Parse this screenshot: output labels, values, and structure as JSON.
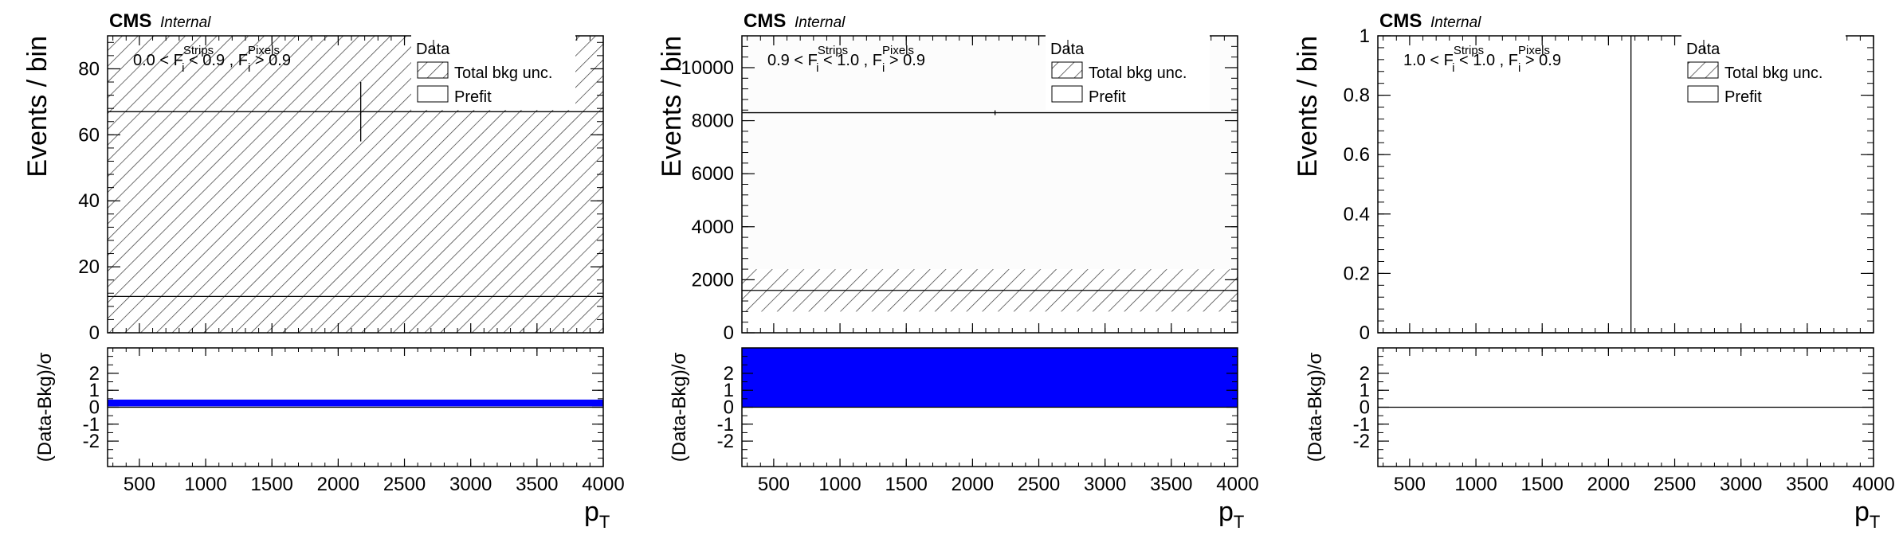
{
  "chart_data": [
    {
      "type": "bar",
      "experiment_label": "CMS",
      "experiment_sublabel": "Internal",
      "region": {
        "text": "0.0 < F",
        "sup1": "Strips",
        "sub1": "i",
        "mid": " < 0.9 , F",
        "sup2": "Pixels",
        "sub2": "i",
        "end": " > 0.9"
      },
      "xlabel": "p",
      "xlabel_sub": "T",
      "ylabel": "Events / bin",
      "ratio_ylabel": "(Data-Bkg)/σ",
      "xlim": [
        260,
        4000
      ],
      "xticks": [
        500,
        1000,
        1500,
        2000,
        2500,
        3000,
        3500,
        4000
      ],
      "ylim": [
        0,
        90
      ],
      "yticks": [
        0,
        20,
        40,
        60,
        80
      ],
      "ratio_ylim": [
        -3.5,
        3.5
      ],
      "ratio_yticks": [
        -2,
        -1,
        0,
        1,
        2
      ],
      "legend": [
        "Data",
        "Total bkg unc.",
        "Prefit"
      ],
      "legend_position": "top-right",
      "series": [
        {
          "name": "Prefit",
          "x": [
            260,
            4000
          ],
          "values": [
            11,
            11
          ]
        },
        {
          "name": "Total bkg unc.",
          "x": [
            260,
            4000
          ],
          "low": [
            0,
            0
          ],
          "high": [
            90,
            90
          ]
        },
        {
          "name": "Data",
          "x": [
            2170
          ],
          "values": [
            67
          ],
          "yerr": [
            9
          ]
        }
      ],
      "data_level_line": 67,
      "ratio": {
        "values": [
          0.25
        ],
        "half_height": 0.2
      }
    },
    {
      "type": "bar",
      "experiment_label": "CMS",
      "experiment_sublabel": "Internal",
      "region": {
        "text": "0.9 < F",
        "sup1": "Strips",
        "sub1": "i",
        "mid": " < 1.0 , F",
        "sup2": "Pixels",
        "sub2": "i",
        "end": " > 0.9"
      },
      "xlabel": "p",
      "xlabel_sub": "T",
      "ylabel": "Events / bin",
      "ratio_ylabel": "(Data-Bkg)/σ",
      "xlim": [
        260,
        4000
      ],
      "xticks": [
        500,
        1000,
        1500,
        2000,
        2500,
        3000,
        3500,
        4000
      ],
      "ylim": [
        0,
        11200
      ],
      "yticks": [
        0,
        2000,
        4000,
        6000,
        8000,
        10000
      ],
      "ratio_ylim": [
        -3.5,
        3.5
      ],
      "ratio_yticks": [
        -2,
        -1,
        0,
        1,
        2
      ],
      "legend": [
        "Data",
        "Total bkg unc.",
        "Prefit"
      ],
      "legend_position": "top-right",
      "series": [
        {
          "name": "Prefit",
          "x": [
            260,
            4000
          ],
          "values": [
            1600,
            1600
          ]
        },
        {
          "name": "Total bkg unc.",
          "x": [
            260,
            4000
          ],
          "low": [
            800,
            800
          ],
          "high": [
            2400,
            2400
          ]
        },
        {
          "name": "Data",
          "x": [
            2170
          ],
          "values": [
            8300
          ],
          "yerr": [
            90
          ]
        }
      ],
      "data_level_line": 8300,
      "ratio": {
        "values": [
          1.75
        ],
        "half_height": 1.75
      }
    },
    {
      "type": "bar",
      "experiment_label": "CMS",
      "experiment_sublabel": "Internal",
      "region": {
        "text": "1.0 < F",
        "sup1": "Strips",
        "sub1": "i",
        "mid": " < 1.0 , F",
        "sup2": "Pixels",
        "sub2": "i",
        "end": " > 0.9"
      },
      "xlabel": "p",
      "xlabel_sub": "T",
      "ylabel": "Events / bin",
      "ratio_ylabel": "(Data-Bkg)/σ",
      "xlim": [
        260,
        4000
      ],
      "xticks": [
        500,
        1000,
        1500,
        2000,
        2500,
        3000,
        3500,
        4000
      ],
      "ylim": [
        0,
        1
      ],
      "yticks": [
        0,
        0.2,
        0.4,
        0.6,
        0.8,
        1
      ],
      "ratio_ylim": [
        -3.5,
        3.5
      ],
      "ratio_yticks": [
        -2,
        -1,
        0,
        1,
        2
      ],
      "legend": [
        "Data",
        "Total bkg unc.",
        "Prefit"
      ],
      "legend_position": "top-right",
      "series": [
        {
          "name": "Prefit",
          "x": [
            260,
            4000
          ],
          "values": [
            0,
            0
          ]
        },
        {
          "name": "Total bkg unc.",
          "x": [
            260,
            4000
          ],
          "low": [
            0,
            0
          ],
          "high": [
            0,
            0
          ]
        },
        {
          "name": "Data",
          "x": [
            2170
          ],
          "values": [
            0
          ],
          "yerr": [
            1
          ]
        }
      ],
      "data_level_line": null,
      "ratio": {
        "values": [
          0
        ],
        "half_height": 0
      }
    }
  ]
}
